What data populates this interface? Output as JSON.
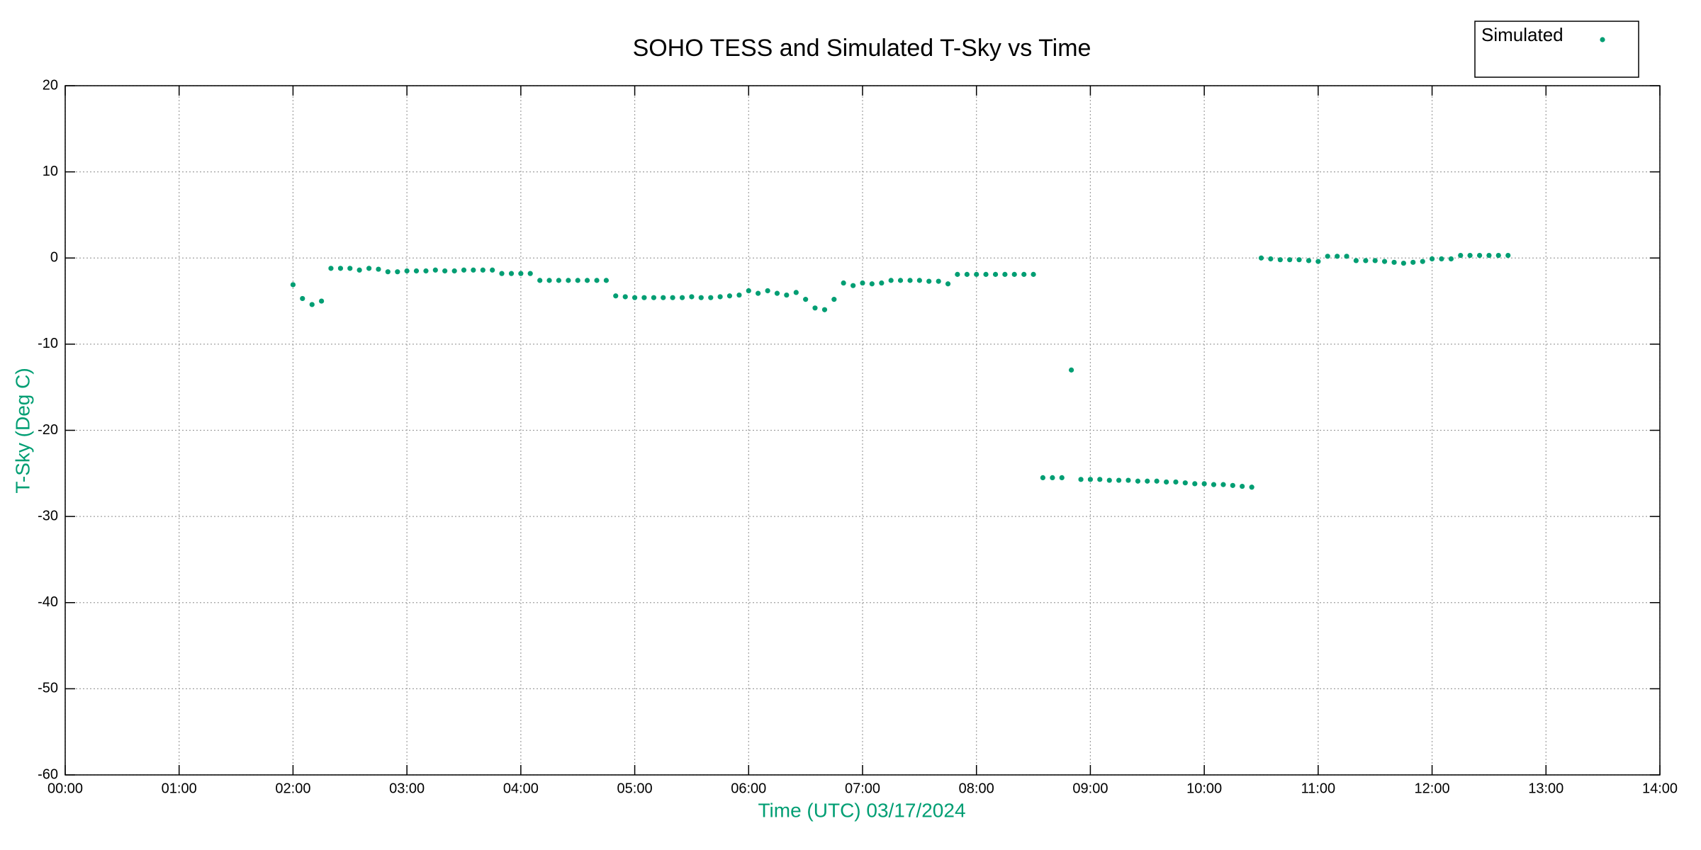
{
  "chart_data": {
    "type": "scatter",
    "title": "SOHO TESS and Simulated T-Sky vs Time",
    "x_label": "Time (UTC)   03/17/2024",
    "y_label": "T-Sky (Deg C)",
    "xlim": [
      0,
      14
    ],
    "xticks": [
      {
        "value": 0,
        "label": "00:00"
      },
      {
        "value": 1,
        "label": "01:00"
      },
      {
        "value": 2,
        "label": "02:00"
      },
      {
        "value": 3,
        "label": "03:00"
      },
      {
        "value": 4,
        "label": "04:00"
      },
      {
        "value": 5,
        "label": "05:00"
      },
      {
        "value": 6,
        "label": "06:00"
      },
      {
        "value": 7,
        "label": "07:00"
      },
      {
        "value": 8,
        "label": "08:00"
      },
      {
        "value": 9,
        "label": "09:00"
      },
      {
        "value": 10,
        "label": "10:00"
      },
      {
        "value": 11,
        "label": "11:00"
      },
      {
        "value": 12,
        "label": "12:00"
      },
      {
        "value": 13,
        "label": "13:00"
      },
      {
        "value": 14,
        "label": "14:00"
      }
    ],
    "ylim": [
      -60,
      20
    ],
    "yticks": [
      -60,
      -50,
      -40,
      -30,
      -20,
      -10,
      0,
      10,
      20
    ],
    "grid": true,
    "legend": "upper right",
    "series": [
      {
        "name": "Simulated",
        "color": "#009e73",
        "x": [
          2,
          2.083,
          2.167,
          2.25,
          2.333,
          2.417,
          2.5,
          2.583,
          2.667,
          2.75,
          2.833,
          2.917,
          3,
          3.083,
          3.167,
          3.25,
          3.333,
          3.417,
          3.5,
          3.583,
          3.667,
          3.75,
          3.833,
          3.917,
          4,
          4.083,
          4.167,
          4.25,
          4.333,
          4.417,
          4.5,
          4.583,
          4.667,
          4.75,
          4.833,
          4.917,
          5,
          5.083,
          5.167,
          5.25,
          5.333,
          5.417,
          5.5,
          5.583,
          5.667,
          5.75,
          5.833,
          5.917,
          6,
          6.083,
          6.167,
          6.25,
          6.333,
          6.417,
          6.5,
          6.583,
          6.667,
          6.75,
          6.833,
          6.917,
          7,
          7.083,
          7.167,
          7.25,
          7.333,
          7.417,
          7.5,
          7.583,
          7.667,
          7.75,
          7.833,
          7.917,
          8,
          8.083,
          8.167,
          8.25,
          8.333,
          8.417,
          8.5,
          8.583,
          8.667,
          8.75,
          8.833,
          8.917,
          9,
          9.083,
          9.167,
          9.25,
          9.333,
          9.417,
          9.5,
          9.583,
          9.667,
          9.75,
          9.833,
          9.917,
          10,
          10.083,
          10.167,
          10.25,
          10.333,
          10.417,
          10.5,
          10.583,
          10.667,
          10.75,
          10.833,
          10.917,
          11,
          11.083,
          11.167,
          11.25,
          11.333,
          11.417,
          11.5,
          11.583,
          11.667,
          11.75,
          11.833,
          11.917,
          12,
          12.083,
          12.167,
          12.25,
          12.333,
          12.417,
          12.5,
          12.583,
          12.667
        ],
        "values": [
          -3.1,
          -4.7,
          -5.4,
          -5.0,
          -1.2,
          -1.2,
          -1.2,
          -1.4,
          -1.2,
          -1.3,
          -1.6,
          -1.6,
          -1.5,
          -1.5,
          -1.5,
          -1.4,
          -1.5,
          -1.5,
          -1.4,
          -1.4,
          -1.4,
          -1.4,
          -1.8,
          -1.8,
          -1.8,
          -1.8,
          -2.6,
          -2.6,
          -2.6,
          -2.6,
          -2.6,
          -2.6,
          -2.6,
          -2.6,
          -4.4,
          -4.5,
          -4.6,
          -4.6,
          -4.6,
          -4.6,
          -4.6,
          -4.6,
          -4.5,
          -4.6,
          -4.6,
          -4.5,
          -4.4,
          -4.3,
          -3.8,
          -4.1,
          -3.8,
          -4.1,
          -4.3,
          -4.0,
          -4.8,
          -5.8,
          -6.0,
          -4.8,
          -2.9,
          -3.2,
          -2.9,
          -3.0,
          -2.9,
          -2.6,
          -2.6,
          -2.6,
          -2.6,
          -2.7,
          -2.7,
          -3.0,
          -1.9,
          -1.9,
          -1.9,
          -1.9,
          -1.9,
          -1.9,
          -1.9,
          -1.9,
          -1.9,
          -25.5,
          -25.5,
          -25.5,
          -13.0,
          -25.7,
          -25.7,
          -25.7,
          -25.8,
          -25.8,
          -25.8,
          -25.9,
          -25.9,
          -25.9,
          -26.0,
          -26.0,
          -26.1,
          -26.2,
          -26.2,
          -26.3,
          -26.3,
          -26.4,
          -26.5,
          -26.6,
          0.0,
          -0.1,
          -0.2,
          -0.2,
          -0.2,
          -0.3,
          -0.4,
          0.2,
          0.2,
          0.2,
          -0.3,
          -0.3,
          -0.3,
          -0.4,
          -0.5,
          -0.6,
          -0.5,
          -0.4,
          -0.1,
          -0.1,
          -0.1,
          0.3,
          0.3,
          0.3,
          0.3,
          0.3,
          0.3
        ]
      }
    ]
  }
}
